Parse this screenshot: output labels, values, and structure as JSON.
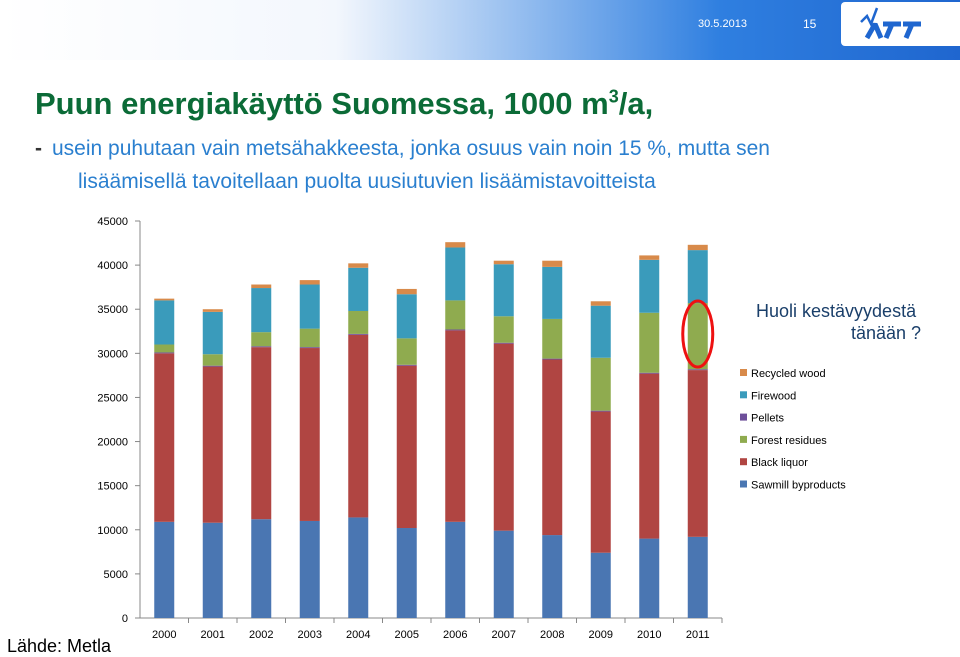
{
  "header": {
    "date": "30.5.2013",
    "page_number": "15",
    "logo_text": "VTT"
  },
  "title": {
    "main": "Puun energiakäyttö Suomessa, 1000 m",
    "superscript": "3",
    "suffix": "/a,"
  },
  "subtitle": {
    "dash": "-",
    "line1": "usein puhutaan vain metsähakkeesta, jonka osuus vain noin 15 %, mutta sen",
    "line2": "lisäämisellä tavoitellaan puolta uusiutuvien lisäämistavoitteista"
  },
  "annotation": {
    "line1": "Huoli kestävyydestä",
    "line2": "tänään ?"
  },
  "source": "Lähde: Metla",
  "colors": {
    "Sawmill byproducts": "#4a76b2",
    "Black liquor": "#b04542",
    "Pellets": "#6e4f9a",
    "Forest residues": "#8fab4f",
    "Firewood": "#3a9bbb",
    "Recycled wood": "#d88a4a",
    "highlight_ellipse": "#ee1111"
  },
  "chart_data": {
    "type": "bar",
    "stacked": true,
    "categories": [
      "2000",
      "2001",
      "2002",
      "2003",
      "2004",
      "2005",
      "2006",
      "2007",
      "2008",
      "2009",
      "2010",
      "2011"
    ],
    "ylim": [
      0,
      45000
    ],
    "yticks": [
      0,
      5000,
      10000,
      15000,
      20000,
      25000,
      30000,
      35000,
      40000,
      45000
    ],
    "grid": false,
    "legend_position": "right",
    "highlight_category": "2011",
    "series": [
      {
        "name": "Sawmill byproducts",
        "values": [
          10900,
          10800,
          11200,
          11000,
          11400,
          10200,
          10900,
          9900,
          9400,
          7400,
          9000,
          9200
        ]
      },
      {
        "name": "Black liquor",
        "values": [
          19100,
          17700,
          19500,
          19600,
          20700,
          18400,
          21700,
          21200,
          19900,
          16000,
          18700,
          18900
        ]
      },
      {
        "name": "Pellets",
        "values": [
          100,
          100,
          100,
          100,
          100,
          100,
          100,
          100,
          100,
          100,
          100,
          100
        ]
      },
      {
        "name": "Forest residues",
        "values": [
          900,
          1300,
          1600,
          2100,
          2600,
          3000,
          3300,
          3000,
          4500,
          6000,
          6800,
          7500
        ]
      },
      {
        "name": "Firewood",
        "values": [
          5000,
          4800,
          5000,
          5000,
          4900,
          5000,
          6000,
          5900,
          5900,
          5900,
          6000,
          6000
        ]
      },
      {
        "name": "Recycled wood",
        "values": [
          200,
          300,
          400,
          500,
          500,
          600,
          600,
          400,
          700,
          500,
          500,
          600
        ]
      }
    ],
    "legend_order": [
      "Recycled wood",
      "Firewood",
      "Pellets",
      "Forest residues",
      "Black liquor",
      "Sawmill byproducts"
    ]
  }
}
